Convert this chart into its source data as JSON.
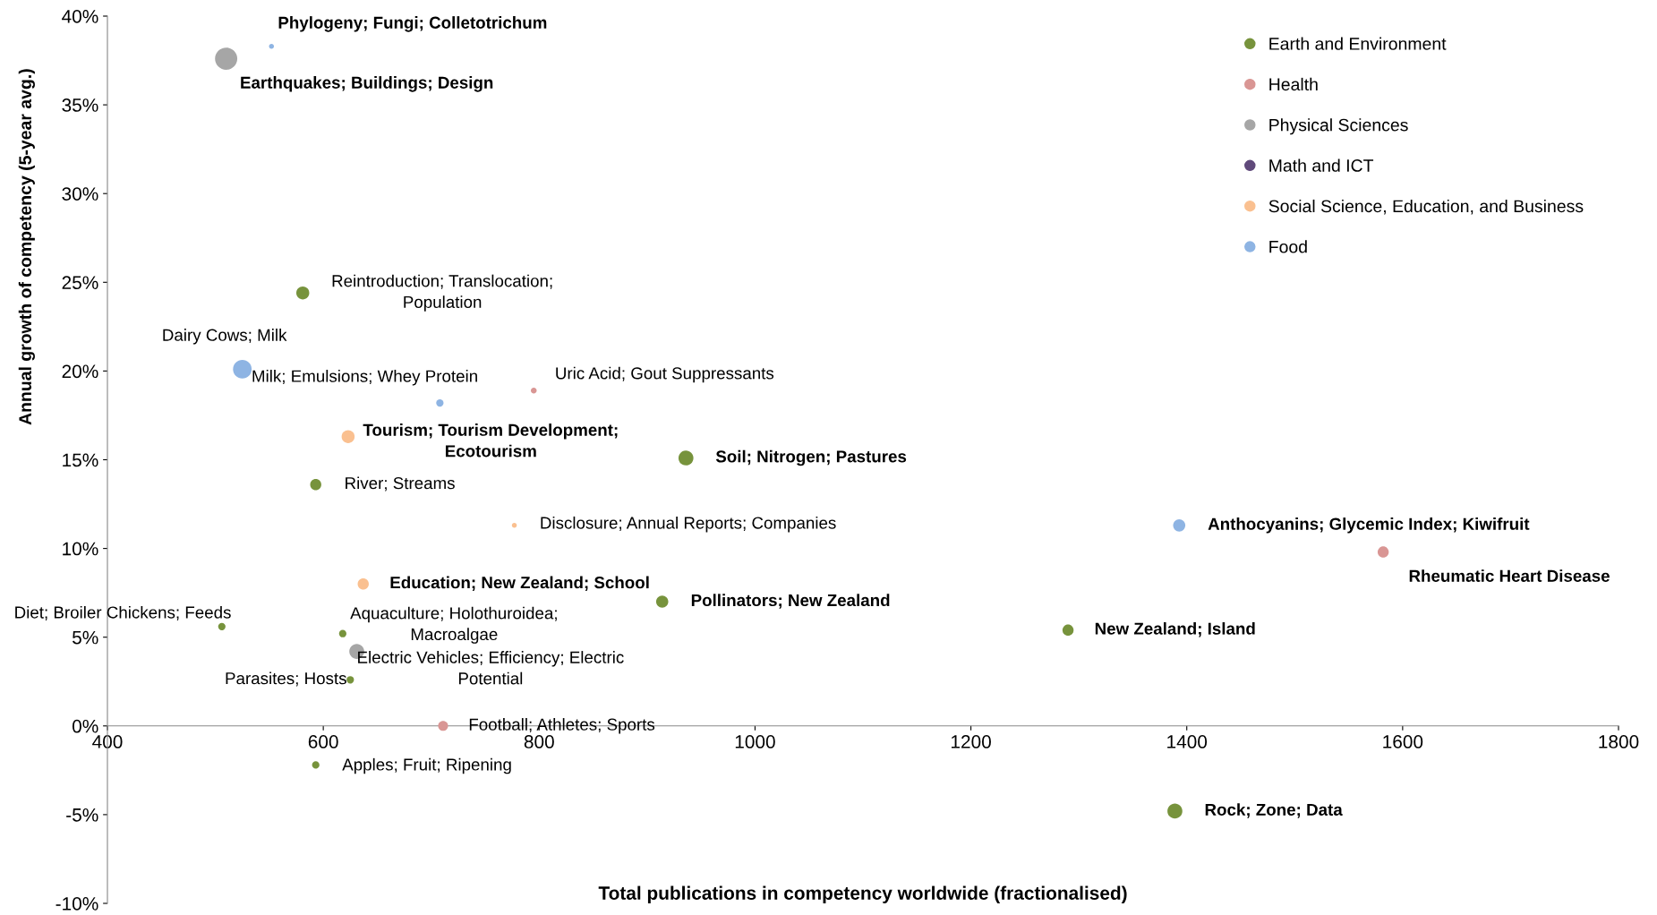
{
  "chart_data": {
    "type": "bubble",
    "xlabel": "Total publications in competency worldwide (fractionalised)",
    "ylabel": "Annual growth of competency (5-year avg.)",
    "xlim": [
      400,
      1800
    ],
    "xticks": [
      400,
      600,
      800,
      1000,
      1200,
      1400,
      1600,
      1800
    ],
    "ylim": [
      -10,
      40
    ],
    "yticks": [
      {
        "value": -10,
        "label": "-10%"
      },
      {
        "value": -5,
        "label": "-5%"
      },
      {
        "value": 0,
        "label": "0%"
      },
      {
        "value": 5,
        "label": "5%"
      },
      {
        "value": 10,
        "label": "10%"
      },
      {
        "value": 15,
        "label": "15%"
      },
      {
        "value": 20,
        "label": "20%"
      },
      {
        "value": 25,
        "label": "25%"
      },
      {
        "value": 30,
        "label": "30%"
      },
      {
        "value": 35,
        "label": "35%"
      },
      {
        "value": 40,
        "label": "40%"
      }
    ],
    "grid": false,
    "legend": "top right",
    "marker": "circle",
    "series": [
      {
        "name": "Earth and Environment",
        "color": "#77933c",
        "x": [
          581,
          936,
          593,
          914,
          506,
          618,
          1290,
          625,
          593,
          1389
        ],
        "values": [
          24.4,
          15.1,
          13.6,
          7.0,
          5.6,
          5.2,
          5.4,
          2.6,
          -2.2,
          -4.8
        ],
        "sizes": [
          0.34,
          0.45,
          0.25,
          0.3,
          0.11,
          0.11,
          0.25,
          0.11,
          0.11,
          0.45
        ]
      },
      {
        "name": "Health",
        "color": "#d99694",
        "x": [
          795,
          1582,
          711
        ],
        "values": [
          18.9,
          9.8,
          0
        ],
        "sizes": [
          0.07,
          0.25,
          0.2
        ]
      },
      {
        "name": "Physical Sciences",
        "color": "#a6a6a6",
        "x": [
          510,
          631
        ],
        "values": [
          37.6,
          4.2
        ],
        "sizes": [
          1,
          0.45
        ]
      },
      {
        "name": "Math and ICT",
        "color": "#604a7b"
      },
      {
        "name": "Social Science, Education, and Business",
        "color": "#fac090",
        "x": [
          623,
          777,
          637
        ],
        "values": [
          16.3,
          11.3,
          8.0
        ],
        "sizes": [
          0.34,
          0.05,
          0.25
        ]
      },
      {
        "name": "Food",
        "color": "#8eb4e3",
        "x": [
          552,
          525,
          708,
          1393
        ],
        "values": [
          38.3,
          20.1,
          18.2,
          11.3
        ],
        "sizes": [
          0.05,
          0.7,
          0.11,
          0.3
        ]
      }
    ],
    "annotations": [
      {
        "text": "Phylogeny; Fungi; Colletotrichum",
        "x": 552,
        "y": 38.3
      },
      {
        "text": "Earthquakes; Buildings; Design",
        "x": 510,
        "y": 37.6
      },
      {
        "text": "Reintroduction; Translocation;\nPopulation",
        "x": 581,
        "y": 24.4
      },
      {
        "text": "Dairy Cows; Milk",
        "x": 525,
        "y": 20.1
      },
      {
        "text": "Milk; Emulsions; Whey Protein",
        "x": 708,
        "y": 18.2
      },
      {
        "text": "Uric Acid; Gout Suppressants",
        "x": 795,
        "y": 18.9
      },
      {
        "text": "Tourism; Tourism Development;\nEcotourism",
        "x": 623,
        "y": 16.3
      },
      {
        "text": "Soil; Nitrogen; Pastures",
        "x": 936,
        "y": 15.1
      },
      {
        "text": "River; Streams",
        "x": 593,
        "y": 13.6
      },
      {
        "text": "Disclosure; Annual Reports; Companies",
        "x": 777,
        "y": 11.3
      },
      {
        "text": "Anthocyanins; Glycemic Index; Kiwifruit",
        "x": 1393,
        "y": 11.3
      },
      {
        "text": "Rheumatic Heart Disease",
        "x": 1582,
        "y": 9.8
      },
      {
        "text": "Education; New Zealand; School",
        "x": 637,
        "y": 8.0
      },
      {
        "text": "Pollinators; New Zealand",
        "x": 914,
        "y": 7.0
      },
      {
        "text": "Diet; Broiler Chickens; Feeds",
        "x": 506,
        "y": 5.6
      },
      {
        "text": "Aquaculture; Holothuroidea;\nMacroalgae",
        "x": 618,
        "y": 5.2
      },
      {
        "text": "Electric Vehicles; Efficiency; Electric\nPotential",
        "x": 631,
        "y": 4.2
      },
      {
        "text": "New Zealand; Island",
        "x": 1290,
        "y": 5.4
      },
      {
        "text": "Parasites; Hosts",
        "x": 625,
        "y": 2.6
      },
      {
        "text": "Football; Athletes; Sports",
        "x": 711,
        "y": 0
      },
      {
        "text": "Apples; Fruit; Ripening",
        "x": 593,
        "y": -2.2
      },
      {
        "text": "Rock; Zone; Data",
        "x": 1389,
        "y": -4.8
      }
    ]
  }
}
